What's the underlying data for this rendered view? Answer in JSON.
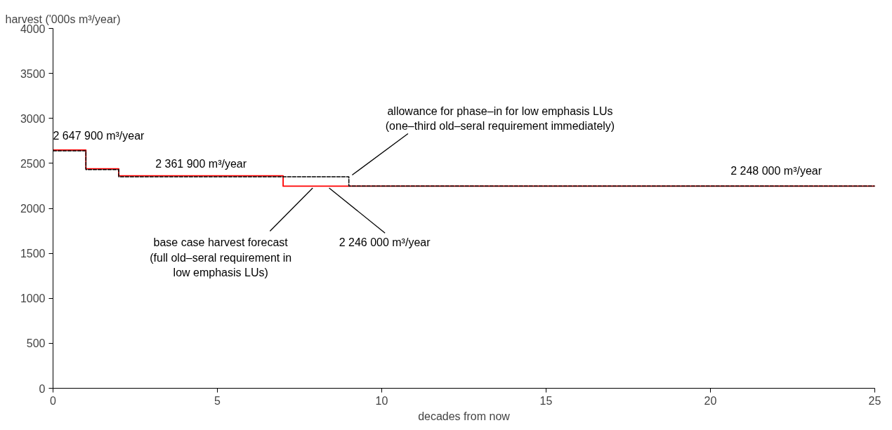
{
  "chart_data": {
    "type": "step",
    "xlabel": "decades from now",
    "ylabel": "harvest ('000s m³/year)",
    "xlim": [
      0,
      25
    ],
    "xticks": [
      0,
      5,
      10,
      15,
      20,
      25
    ],
    "ylim": [
      0,
      4000
    ],
    "yticks": [
      0,
      500,
      1000,
      1500,
      2000,
      2500,
      3000,
      3500,
      4000
    ],
    "grid": false,
    "series": [
      {
        "color": "#ff0000",
        "line_style": "solid",
        "x": [
          0,
          1,
          2,
          7,
          25
        ],
        "values": [
          2648,
          2440,
          2362,
          2246,
          2246
        ]
      },
      {
        "color": "#000000",
        "line_style": "dashed",
        "x": [
          0,
          1,
          2,
          9,
          25
        ],
        "values": [
          2640,
          2430,
          2350,
          2248,
          2248
        ]
      }
    ],
    "annotations": [
      {
        "text": "2 647 900 m³/year",
        "x": 0.5,
        "y": 2648
      },
      {
        "text": "2 361 900 m³/year",
        "x": 4.5,
        "y": 2362
      },
      {
        "text": "2 248 000 m³/year",
        "x": 22,
        "y": 2248
      },
      {
        "text": "2 246 000 m³/year",
        "x": 8.4,
        "y": 2246
      },
      {
        "text": "base case harvest forecast\n(full old–seral requirement in\nlow emphasis LUs)",
        "x": 7.9,
        "y": 2246
      },
      {
        "text": "allowance for phase–in for low emphasis LUs\n(one–third old–seral requirement immediately)",
        "x": 9.1,
        "y": 2350
      }
    ]
  }
}
